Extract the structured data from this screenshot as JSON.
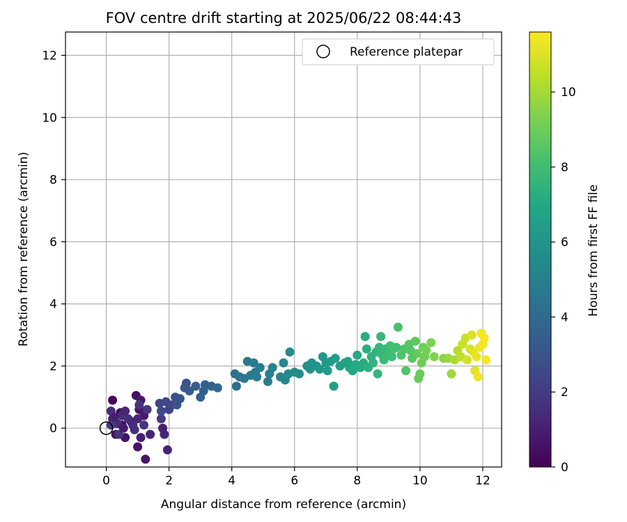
{
  "chart_data": {
    "type": "scatter",
    "title": "FOV centre drift starting at 2025/06/22 08:44:43",
    "xlabel": "Angular distance from reference (arcmin)",
    "ylabel": "Rotation from reference (arcmin)",
    "xlim": [
      -1.3,
      12.6
    ],
    "ylim": [
      -1.25,
      12.75
    ],
    "xticks": [
      0,
      2,
      4,
      6,
      8,
      10,
      12
    ],
    "yticks": [
      0,
      2,
      4,
      6,
      8,
      10,
      12
    ],
    "grid": true,
    "legend": {
      "position": "top-right",
      "entries": [
        "Reference platepar"
      ]
    },
    "reference_point": {
      "x": 0,
      "y": 0,
      "marker": "hollow-circle",
      "label": "Reference platepar"
    },
    "colorbar": {
      "label": "Hours from first FF file",
      "colormap": "viridis",
      "range": [
        0,
        11.6
      ],
      "ticks": [
        0,
        2,
        4,
        6,
        8,
        10
      ]
    },
    "series": [
      {
        "columns": [
          "x",
          "y",
          "hours"
        ],
        "points": [
          [
            0.2,
            0.9,
            0.2
          ],
          [
            0.45,
            0.5,
            0.3
          ],
          [
            0.5,
            0.1,
            0.4
          ],
          [
            0.3,
            -0.2,
            0.5
          ],
          [
            0.6,
            -0.3,
            0.6
          ],
          [
            0.8,
            0.2,
            0.2
          ],
          [
            0.95,
            1.05,
            0.5
          ],
          [
            1.05,
            0.6,
            0.7
          ],
          [
            1.1,
            0.9,
            0.8
          ],
          [
            1.2,
            0.4,
            0.9
          ],
          [
            1.1,
            -0.3,
            1.0
          ],
          [
            1.0,
            -0.6,
            0.6
          ],
          [
            1.25,
            -1.0,
            0.7
          ],
          [
            1.4,
            -0.2,
            1.1
          ],
          [
            1.0,
            0.3,
            1.2
          ],
          [
            0.2,
            0.3,
            1.2
          ],
          [
            0.35,
            0.15,
            1.4
          ],
          [
            0.5,
            0.4,
            1.5
          ],
          [
            0.15,
            0.55,
            1.6
          ],
          [
            0.6,
            0.55,
            1.3
          ],
          [
            0.7,
            0.3,
            1.6
          ],
          [
            0.85,
            0.1,
            1.4
          ],
          [
            1.05,
            0.75,
            1.8
          ],
          [
            1.3,
            0.6,
            1.9
          ],
          [
            1.2,
            0.1,
            1.9
          ],
          [
            0.4,
            -0.2,
            1.7
          ],
          [
            0.9,
            -0.05,
            1.5
          ],
          [
            0.15,
            0.1,
            2.0
          ],
          [
            0.25,
            0.35,
            1.0
          ],
          [
            0.55,
            0.0,
            0.9
          ],
          [
            1.75,
            0.3,
            2.0
          ],
          [
            1.8,
            0.0,
            1.0
          ],
          [
            1.85,
            -0.2,
            1.2
          ],
          [
            1.95,
            -0.7,
            1.1
          ],
          [
            1.7,
            0.8,
            2.4
          ],
          [
            1.9,
            0.85,
            2.5
          ],
          [
            2.0,
            0.6,
            2.3
          ],
          [
            1.75,
            0.55,
            2.6
          ],
          [
            2.1,
            0.75,
            2.4
          ],
          [
            2.2,
            1.0,
            2.9
          ],
          [
            2.35,
            0.95,
            3.0
          ],
          [
            2.25,
            0.75,
            3.0
          ],
          [
            2.5,
            1.3,
            3.2
          ],
          [
            2.55,
            1.45,
            3.1
          ],
          [
            2.65,
            1.2,
            3.3
          ],
          [
            2.85,
            1.35,
            3.4
          ],
          [
            3.0,
            1.0,
            3.5
          ],
          [
            3.1,
            1.2,
            3.5
          ],
          [
            3.15,
            1.4,
            3.6
          ],
          [
            3.35,
            1.35,
            3.6
          ],
          [
            3.55,
            1.3,
            3.8
          ],
          [
            4.1,
            1.75,
            4.2
          ],
          [
            4.15,
            1.35,
            4.3
          ],
          [
            4.25,
            1.65,
            4.4
          ],
          [
            4.4,
            1.6,
            4.5
          ],
          [
            4.5,
            2.15,
            4.6
          ],
          [
            4.6,
            1.7,
            4.6
          ],
          [
            4.7,
            2.1,
            4.7
          ],
          [
            4.75,
            1.8,
            4.8
          ],
          [
            4.8,
            1.65,
            4.8
          ],
          [
            4.9,
            1.95,
            4.9
          ],
          [
            5.15,
            1.5,
            5.0
          ],
          [
            5.2,
            1.75,
            5.0
          ],
          [
            5.3,
            1.95,
            5.1
          ],
          [
            5.55,
            1.65,
            5.2
          ],
          [
            5.65,
            2.1,
            5.3
          ],
          [
            5.7,
            1.55,
            5.3
          ],
          [
            5.8,
            1.75,
            5.4
          ],
          [
            5.85,
            2.45,
            5.5
          ],
          [
            6.0,
            1.8,
            5.6
          ],
          [
            6.15,
            1.75,
            5.6
          ],
          [
            6.4,
            2.0,
            5.8
          ],
          [
            6.5,
            1.9,
            5.9
          ],
          [
            6.55,
            2.1,
            5.9
          ],
          [
            6.7,
            2.0,
            6.0
          ],
          [
            6.8,
            1.9,
            6.1
          ],
          [
            6.9,
            2.3,
            6.1
          ],
          [
            7.0,
            2.1,
            6.2
          ],
          [
            7.05,
            1.85,
            6.3
          ],
          [
            7.15,
            2.15,
            6.3
          ],
          [
            7.25,
            1.35,
            6.4
          ],
          [
            7.3,
            2.25,
            6.4
          ],
          [
            7.45,
            2.0,
            6.5
          ],
          [
            7.6,
            2.1,
            6.6
          ],
          [
            7.7,
            2.15,
            6.7
          ],
          [
            7.75,
            1.95,
            6.8
          ],
          [
            7.85,
            1.85,
            6.9
          ],
          [
            7.95,
            2.05,
            7.0
          ],
          [
            8.0,
            2.35,
            7.0
          ],
          [
            8.1,
            1.95,
            7.1
          ],
          [
            8.2,
            2.1,
            7.2
          ],
          [
            8.25,
            2.95,
            7.2
          ],
          [
            8.3,
            2.55,
            7.3
          ],
          [
            8.35,
            1.95,
            7.3
          ],
          [
            8.45,
            2.3,
            7.4
          ],
          [
            8.5,
            2.1,
            7.5
          ],
          [
            8.6,
            2.45,
            7.5
          ],
          [
            8.65,
            1.75,
            7.6
          ],
          [
            8.7,
            2.6,
            7.6
          ],
          [
            8.75,
            2.95,
            7.7
          ],
          [
            8.8,
            2.35,
            7.7
          ],
          [
            8.85,
            2.2,
            7.8
          ],
          [
            8.9,
            2.55,
            7.8
          ],
          [
            9.0,
            2.4,
            7.9
          ],
          [
            9.05,
            2.65,
            8.0
          ],
          [
            9.1,
            2.3,
            8.0
          ],
          [
            9.15,
            2.55,
            8.1
          ],
          [
            9.25,
            2.6,
            8.1
          ],
          [
            9.3,
            3.25,
            8.2
          ],
          [
            9.4,
            2.35,
            8.3
          ],
          [
            9.5,
            2.55,
            8.3
          ],
          [
            9.55,
            1.85,
            8.4
          ],
          [
            9.65,
            2.7,
            8.5
          ],
          [
            9.7,
            2.5,
            8.5
          ],
          [
            9.75,
            2.25,
            8.6
          ],
          [
            9.85,
            2.8,
            8.7
          ],
          [
            9.9,
            2.4,
            8.8
          ],
          [
            9.95,
            1.6,
            8.8
          ],
          [
            10.0,
            1.75,
            8.9
          ],
          [
            10.05,
            2.1,
            9.0
          ],
          [
            10.1,
            2.6,
            9.0
          ],
          [
            10.15,
            2.3,
            9.1
          ],
          [
            10.2,
            2.5,
            9.2
          ],
          [
            10.35,
            2.75,
            9.3
          ],
          [
            10.45,
            2.3,
            9.4
          ],
          [
            10.75,
            2.25,
            9.6
          ],
          [
            10.9,
            2.25,
            9.8
          ],
          [
            11.0,
            1.75,
            9.9
          ],
          [
            11.1,
            2.2,
            10.1
          ],
          [
            11.2,
            2.5,
            10.3
          ],
          [
            11.3,
            2.3,
            10.5
          ],
          [
            11.35,
            2.7,
            10.6
          ],
          [
            11.45,
            2.9,
            10.7
          ],
          [
            11.5,
            2.2,
            10.8
          ],
          [
            11.6,
            2.55,
            10.9
          ],
          [
            11.65,
            3.0,
            11.0
          ],
          [
            11.7,
            2.45,
            11.1
          ],
          [
            11.75,
            1.85,
            11.1
          ],
          [
            11.8,
            2.3,
            11.2
          ],
          [
            11.85,
            1.65,
            11.3
          ],
          [
            11.9,
            2.6,
            11.3
          ],
          [
            11.95,
            3.05,
            11.4
          ],
          [
            12.0,
            2.7,
            11.4
          ],
          [
            12.05,
            2.9,
            11.5
          ],
          [
            12.1,
            2.2,
            11.5
          ]
        ]
      }
    ]
  }
}
